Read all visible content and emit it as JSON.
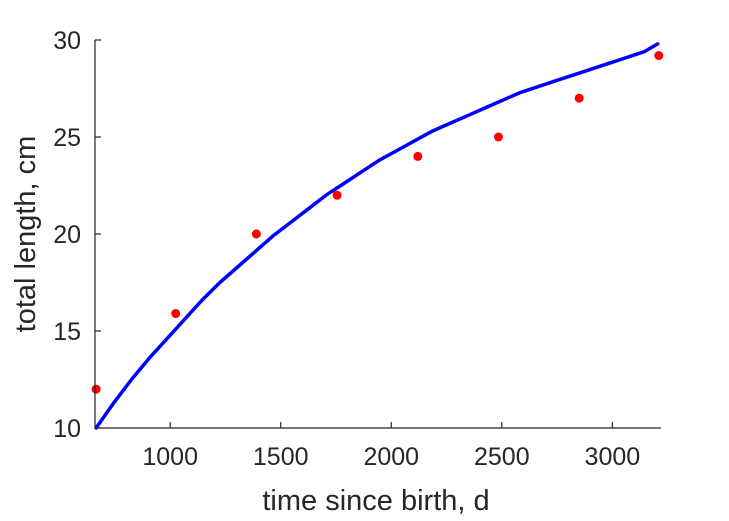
{
  "chart_data": {
    "type": "scatter",
    "title": "",
    "xlabel": "time since birth, d",
    "ylabel": "total length, cm",
    "xlim": [
      660,
      3220
    ],
    "ylim": [
      10,
      30
    ],
    "xticks": [
      1000,
      1500,
      2000,
      2500,
      3000
    ],
    "yticks": [
      10,
      15,
      20,
      25,
      30
    ],
    "grid": false,
    "colors": {
      "points": "#ff0000",
      "curve": "#0000ff",
      "axis": "#262626"
    },
    "series": [
      {
        "type": "scatter",
        "x": [
          665,
          1025,
          1390,
          1755,
          2120,
          2485,
          2850,
          3210
        ],
        "y": [
          12.0,
          15.9,
          20.0,
          22.0,
          24.0,
          25.0,
          27.0,
          29.2
        ]
      },
      {
        "type": "line",
        "x": [
          665,
          745,
          825,
          905,
          985,
          1065,
          1145,
          1225,
          1305,
          1385,
          1465,
          1545,
          1625,
          1705,
          1785,
          1865,
          1945,
          2025,
          2105,
          2185,
          2265,
          2345,
          2425,
          2505,
          2585,
          2665,
          2745,
          2825,
          2905,
          2985,
          3065,
          3145,
          3205
        ],
        "y": [
          10.0,
          11.3,
          12.5,
          13.6,
          14.6,
          15.6,
          16.6,
          17.5,
          18.3,
          19.1,
          19.9,
          20.6,
          21.3,
          22.0,
          22.6,
          23.2,
          23.8,
          24.3,
          24.8,
          25.3,
          25.7,
          26.1,
          26.5,
          26.9,
          27.3,
          27.6,
          27.9,
          28.2,
          28.5,
          28.8,
          29.1,
          29.4,
          29.8
        ]
      }
    ]
  }
}
